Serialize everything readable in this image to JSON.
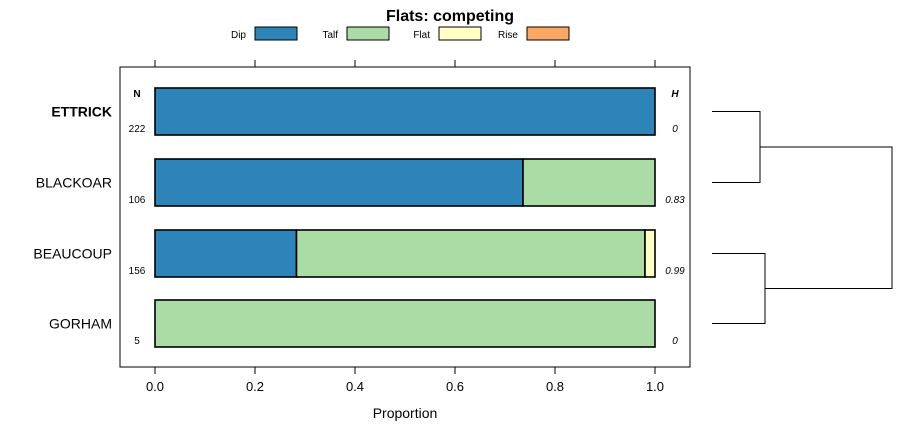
{
  "chart_data": {
    "type": "bar",
    "orientation": "horizontal",
    "stacked": true,
    "title": "Flats: competing",
    "xlabel": "Proportion",
    "ylabel": "",
    "xlim": [
      -0.07,
      1.07
    ],
    "xticks": [
      0.0,
      0.2,
      0.4,
      0.6,
      0.8,
      1.0
    ],
    "xtick_labels": [
      "0.0",
      "0.2",
      "0.4",
      "0.6",
      "0.8",
      "1.0"
    ],
    "legend_position": "top",
    "n_header": "N",
    "h_header": "H",
    "categories": [
      "ETTRICK",
      "BLACKOAR",
      "BEAUCOUP",
      "GORHAM"
    ],
    "highlight": "ETTRICK",
    "n_values": [
      "222",
      "106",
      "156",
      "5"
    ],
    "h_values": [
      "0",
      "0.83",
      "0.99",
      "0"
    ],
    "series": [
      {
        "name": "Dip",
        "color": "#2c84b9",
        "values": [
          1.0,
          0.736,
          0.283,
          0.0
        ]
      },
      {
        "name": "Talf",
        "color": "#acdca5",
        "values": [
          0.0,
          0.264,
          0.697,
          1.0
        ]
      },
      {
        "name": "Flat",
        "color": "#ffffc6",
        "values": [
          0.0,
          0.0,
          0.02,
          0.0
        ]
      },
      {
        "name": "Rise",
        "color": "#fda765",
        "values": [
          0.0,
          0.0,
          0.0,
          0.0
        ]
      }
    ],
    "dendrogram": {
      "merges": [
        {
          "left": "ETTRICK",
          "right": "BLACKOAR",
          "height": 1
        },
        {
          "left": "BEAUCOUP",
          "right": "GORHAM",
          "height": 2
        },
        {
          "left": "cluster-1",
          "right": "cluster-2",
          "height": 5
        }
      ]
    }
  }
}
